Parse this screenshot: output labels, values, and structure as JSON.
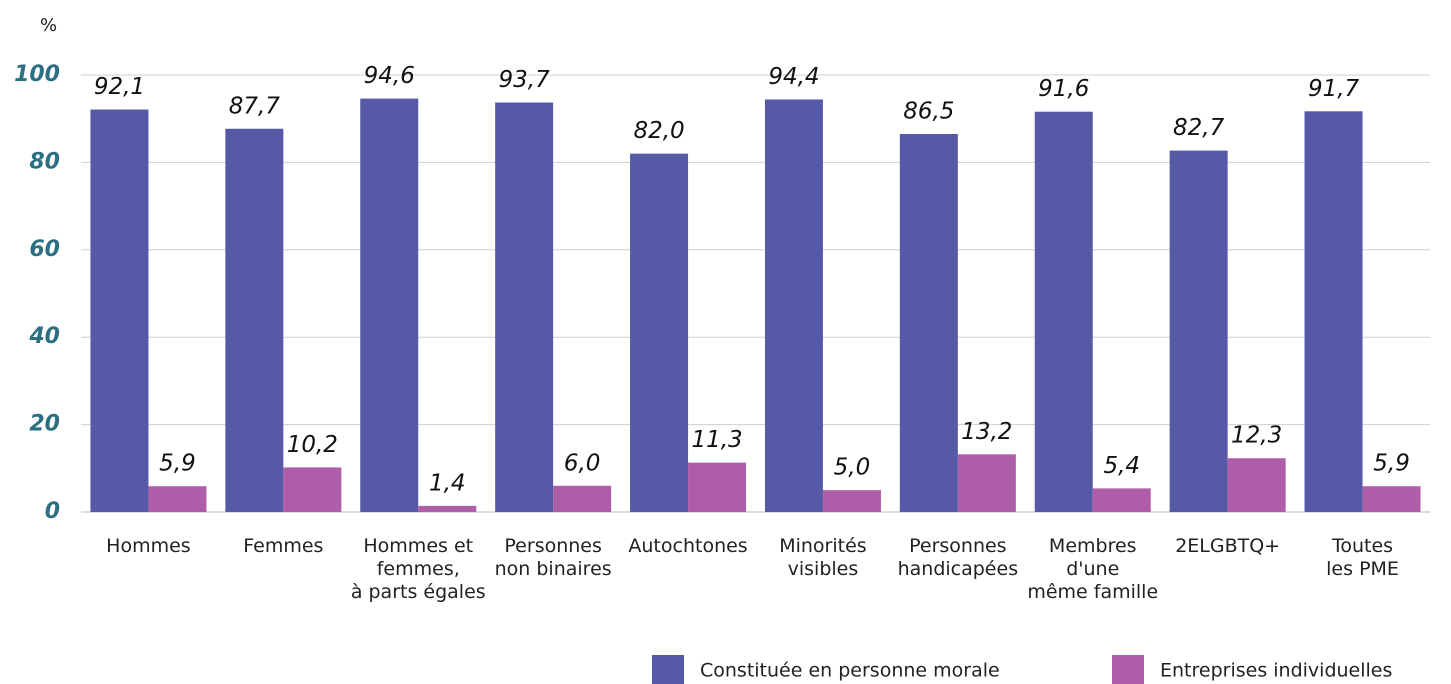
{
  "chart_data": {
    "type": "bar",
    "y_label": "%",
    "categories": [
      [
        "Hommes"
      ],
      [
        "Femmes"
      ],
      [
        "Hommes et",
        "femmes,",
        "à parts égales"
      ],
      [
        "Personnes",
        "non binaires"
      ],
      [
        "Autochtones"
      ],
      [
        "Minorités",
        "visibles"
      ],
      [
        "Personnes",
        "handicapées"
      ],
      [
        "Membres",
        "d'une",
        "même famille"
      ],
      [
        "2ELGBTQ+"
      ],
      [
        "Toutes",
        "les PME"
      ]
    ],
    "series": [
      {
        "name": "Constituée en personne morale",
        "color": "#5659a5",
        "values": [
          92.1,
          87.7,
          94.6,
          93.7,
          82.0,
          94.4,
          86.5,
          91.6,
          82.7,
          91.7
        ],
        "value_labels": [
          "92,1",
          "87,7",
          "94,6",
          "93,7",
          "82,0",
          "94,4",
          "86,5",
          "91,6",
          "82,7",
          "91,7"
        ]
      },
      {
        "name": "Entreprises individuelles",
        "color": "#ae5da8",
        "values": [
          5.9,
          10.2,
          1.4,
          6.0,
          11.3,
          5.0,
          13.2,
          5.4,
          12.3,
          5.9
        ],
        "value_labels": [
          "5,9",
          "10,2",
          "1,4",
          "6,0",
          "11,3",
          "5,0",
          "13,2",
          "5,4",
          "12,3",
          "5,9"
        ]
      }
    ],
    "ylim": [
      0,
      100
    ],
    "yticks": [
      0,
      20,
      40,
      60,
      80,
      100
    ],
    "grid": true,
    "legend": "bottom"
  }
}
